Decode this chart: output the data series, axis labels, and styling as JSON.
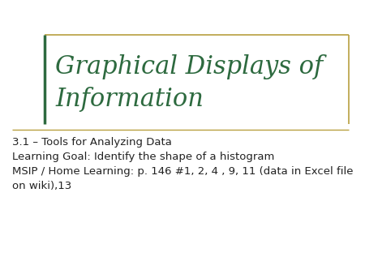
{
  "title_line1": "Graphical Displays of",
  "title_line2": "Information",
  "title_color": "#2d6a3f",
  "subtitle_line1": "3.1 – Tools for Analyzing Data",
  "subtitle_line2": "Learning Goal: Identify the shape of a histogram",
  "subtitle_line3": "MSIP / Home Learning: p. 146 #1, 2, 4 , 9, 11 (data in Excel file",
  "subtitle_line4": "on wiki),13",
  "background_color": "#ffffff",
  "border_color_gold": "#b8a040",
  "border_color_green": "#2d6a3f",
  "divider_color": "#b8a040",
  "text_color": "#222222",
  "title_fontsize": 22,
  "subtitle_fontsize": 9.5
}
